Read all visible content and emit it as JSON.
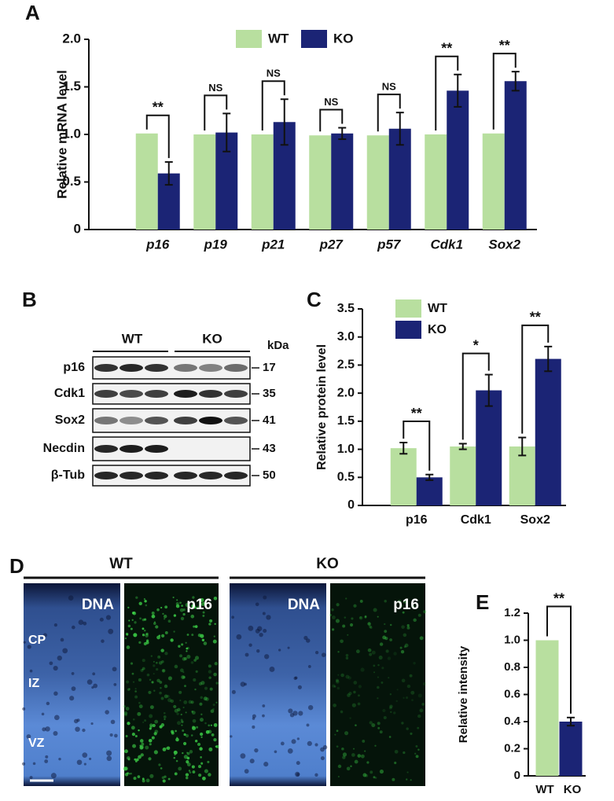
{
  "chart_data": [
    {
      "type": "bar",
      "panel_label": "A",
      "ylabel": "Relative mRNA level",
      "categories": [
        "p16",
        "p19",
        "p21",
        "p27",
        "p57",
        "Cdk1",
        "Sox2"
      ],
      "italic_categories": true,
      "series": [
        {
          "name": "WT",
          "color": "#b8df9f",
          "values": [
            1.01,
            1.0,
            1.0,
            0.99,
            0.99,
            1.0,
            1.01
          ]
        },
        {
          "name": "KO",
          "color": "#1b2475",
          "values": [
            0.59,
            1.02,
            1.13,
            1.01,
            1.06,
            1.46,
            1.56
          ],
          "errors": [
            0.12,
            0.2,
            0.24,
            0.06,
            0.17,
            0.17,
            0.1
          ]
        }
      ],
      "ylim": [
        0,
        2
      ],
      "yticks": [
        0,
        0.5,
        {
          "value": 1,
          "label": "1.0"
        },
        1.5,
        {
          "value": 2,
          "label": "2.0"
        }
      ],
      "annotations": [
        "**",
        "NS",
        "NS",
        "NS",
        "NS",
        "**",
        "**"
      ],
      "legend": "top"
    },
    {
      "type": "bar",
      "panel_label": "C",
      "ylabel": "Relative protein level",
      "categories": [
        "p16",
        "Cdk1",
        "Sox2"
      ],
      "series": [
        {
          "name": "WT",
          "color": "#b8df9f",
          "values": [
            1.02,
            1.05,
            1.05
          ],
          "errors": [
            0.1,
            0.05,
            0.16
          ]
        },
        {
          "name": "KO",
          "color": "#1b2475",
          "values": [
            0.5,
            2.05,
            2.61
          ],
          "errors": [
            0.05,
            0.28,
            0.22
          ]
        }
      ],
      "ylim": [
        0,
        3.5
      ],
      "yticks": [
        0,
        0.5,
        {
          "value": 1,
          "label": "1.0"
        },
        1.5,
        {
          "value": 2,
          "label": "2.0"
        },
        2.5,
        {
          "value": 3,
          "label": "3.0"
        },
        3.5
      ],
      "annotations": [
        "**",
        "*",
        "**"
      ],
      "legend": "upper left"
    },
    {
      "type": "bar",
      "panel_label": "E",
      "ylabel": "Relative intensity",
      "categories": [
        "WT",
        "KO"
      ],
      "values": [
        1.0,
        0.4
      ],
      "colors": [
        "#b8df9f",
        "#1b2475"
      ],
      "errors": [
        null,
        0.03
      ],
      "ylim": [
        0,
        1.2
      ],
      "yticks": [
        0,
        0.2,
        0.4,
        0.6,
        0.8,
        {
          "value": 1,
          "label": "1.0"
        },
        1.2
      ],
      "annotations": [
        "**"
      ]
    }
  ],
  "blot": {
    "panel_label": "B",
    "groups": [
      "WT",
      "KO"
    ],
    "unit": "kDa",
    "rows": [
      {
        "label": "p16",
        "size": 17
      },
      {
        "label": "Cdk1",
        "size": 35
      },
      {
        "label": "Sox2",
        "size": 41
      },
      {
        "label": "Necdin",
        "size": 43
      },
      {
        "label": "β-Tub",
        "size": 50
      }
    ]
  },
  "microscopy": {
    "panel_label": "D",
    "groups": [
      {
        "label": "WT",
        "channels": [
          "DNA",
          "p16"
        ]
      },
      {
        "label": "KO",
        "channels": [
          "DNA",
          "p16"
        ]
      }
    ],
    "zones": [
      "CP",
      "IZ",
      "VZ"
    ]
  }
}
